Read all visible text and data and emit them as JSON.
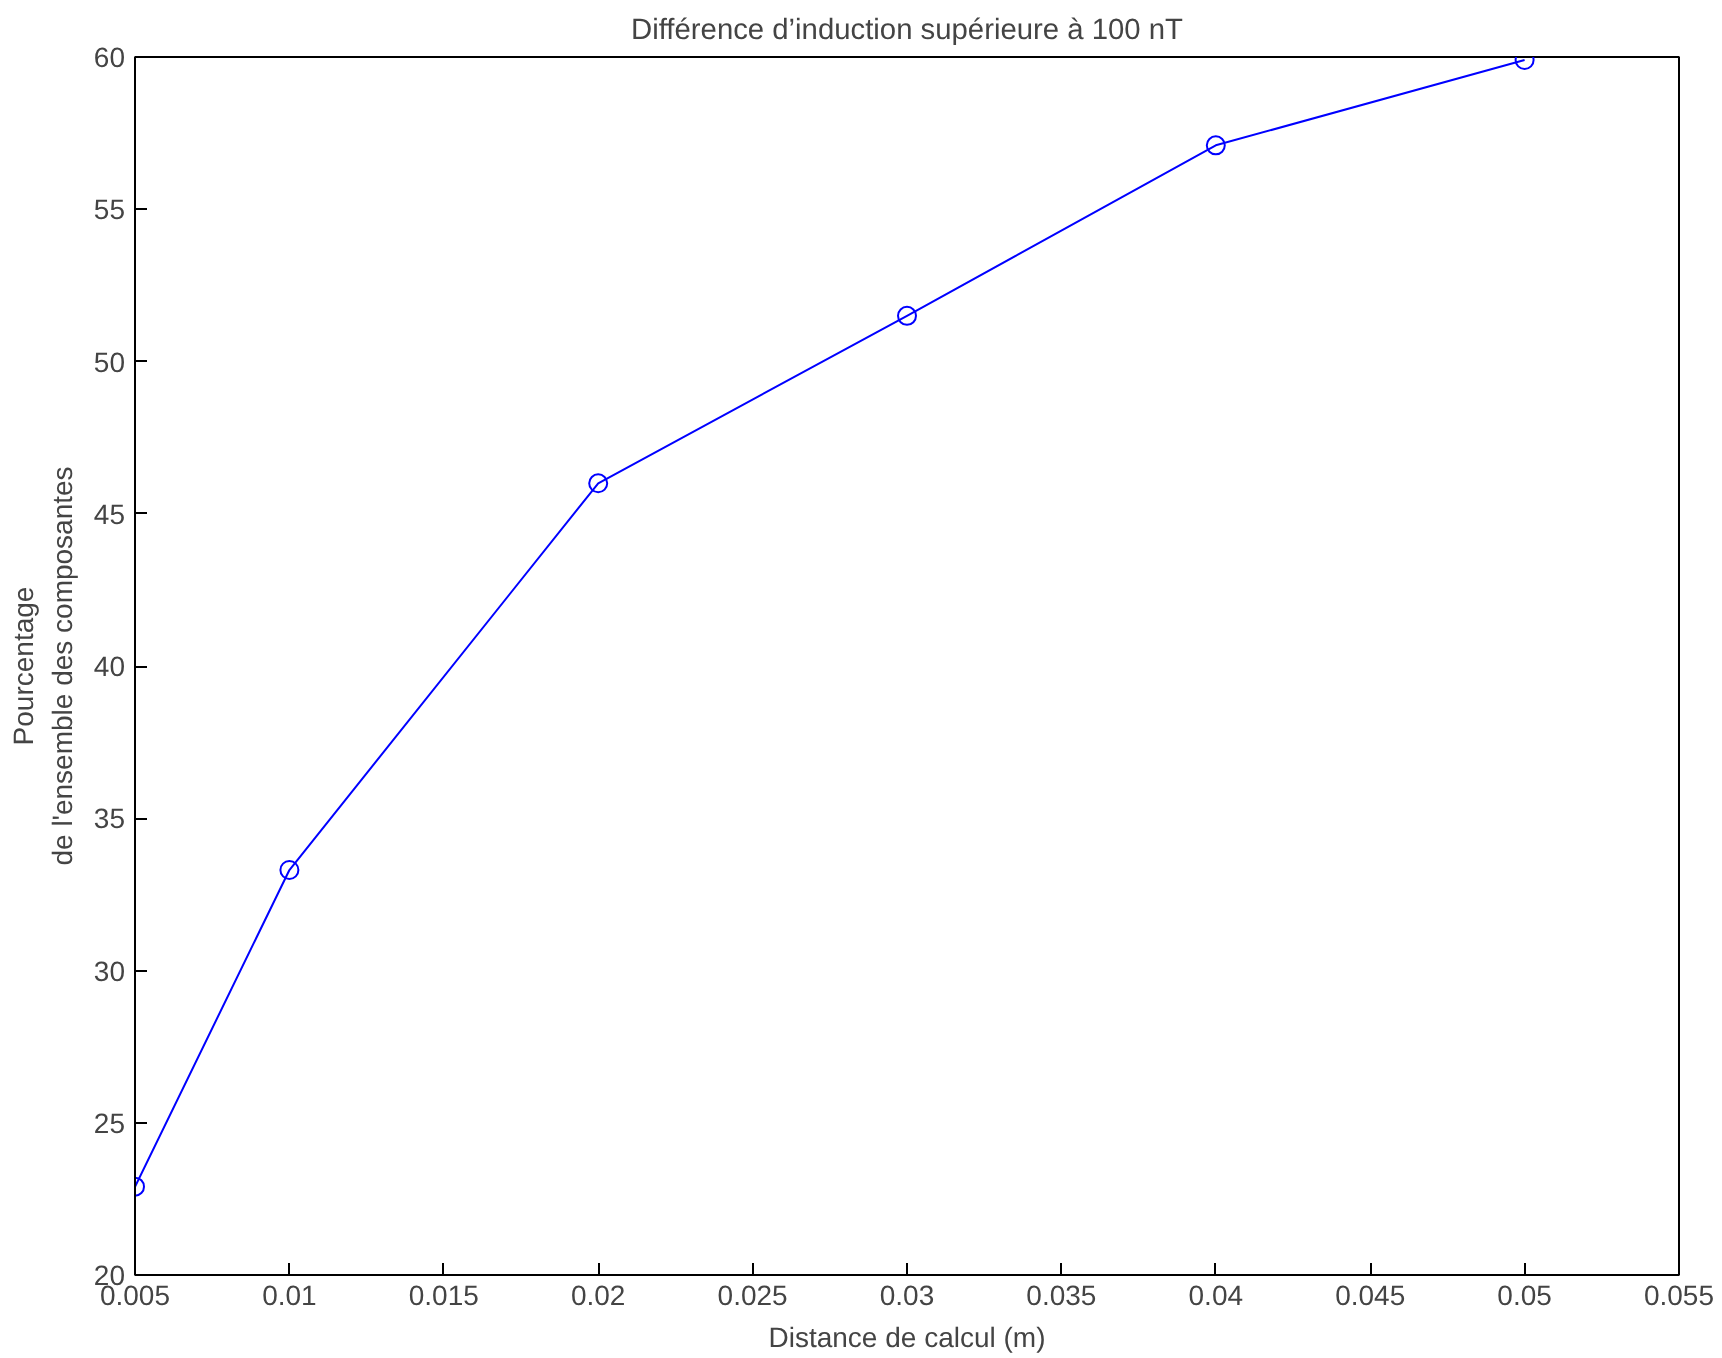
{
  "chart_data": {
    "type": "line",
    "title": "Différence d’induction supérieure à 100 nT",
    "xlabel": "Distance de calcul (m)",
    "ylabel": "Pourcentage\nde l'ensemble des composantes",
    "x": [
      0.005,
      0.01,
      0.02,
      0.03,
      0.04,
      0.05
    ],
    "series": [
      {
        "color": "#0000ff",
        "values": [
          22.9,
          33.3,
          46.0,
          51.5,
          57.1,
          59.9
        ]
      }
    ],
    "xlim": [
      0.005,
      0.055
    ],
    "xticks": [
      0.005,
      0.01,
      0.015,
      0.02,
      0.025,
      0.03,
      0.035,
      0.04,
      0.045,
      0.05,
      0.055
    ],
    "ylim": [
      20,
      60
    ],
    "yticks": [
      20,
      25,
      30,
      35,
      40,
      45,
      50,
      55,
      60
    ],
    "grid": false,
    "marker": "circle",
    "line_style": "solid"
  }
}
